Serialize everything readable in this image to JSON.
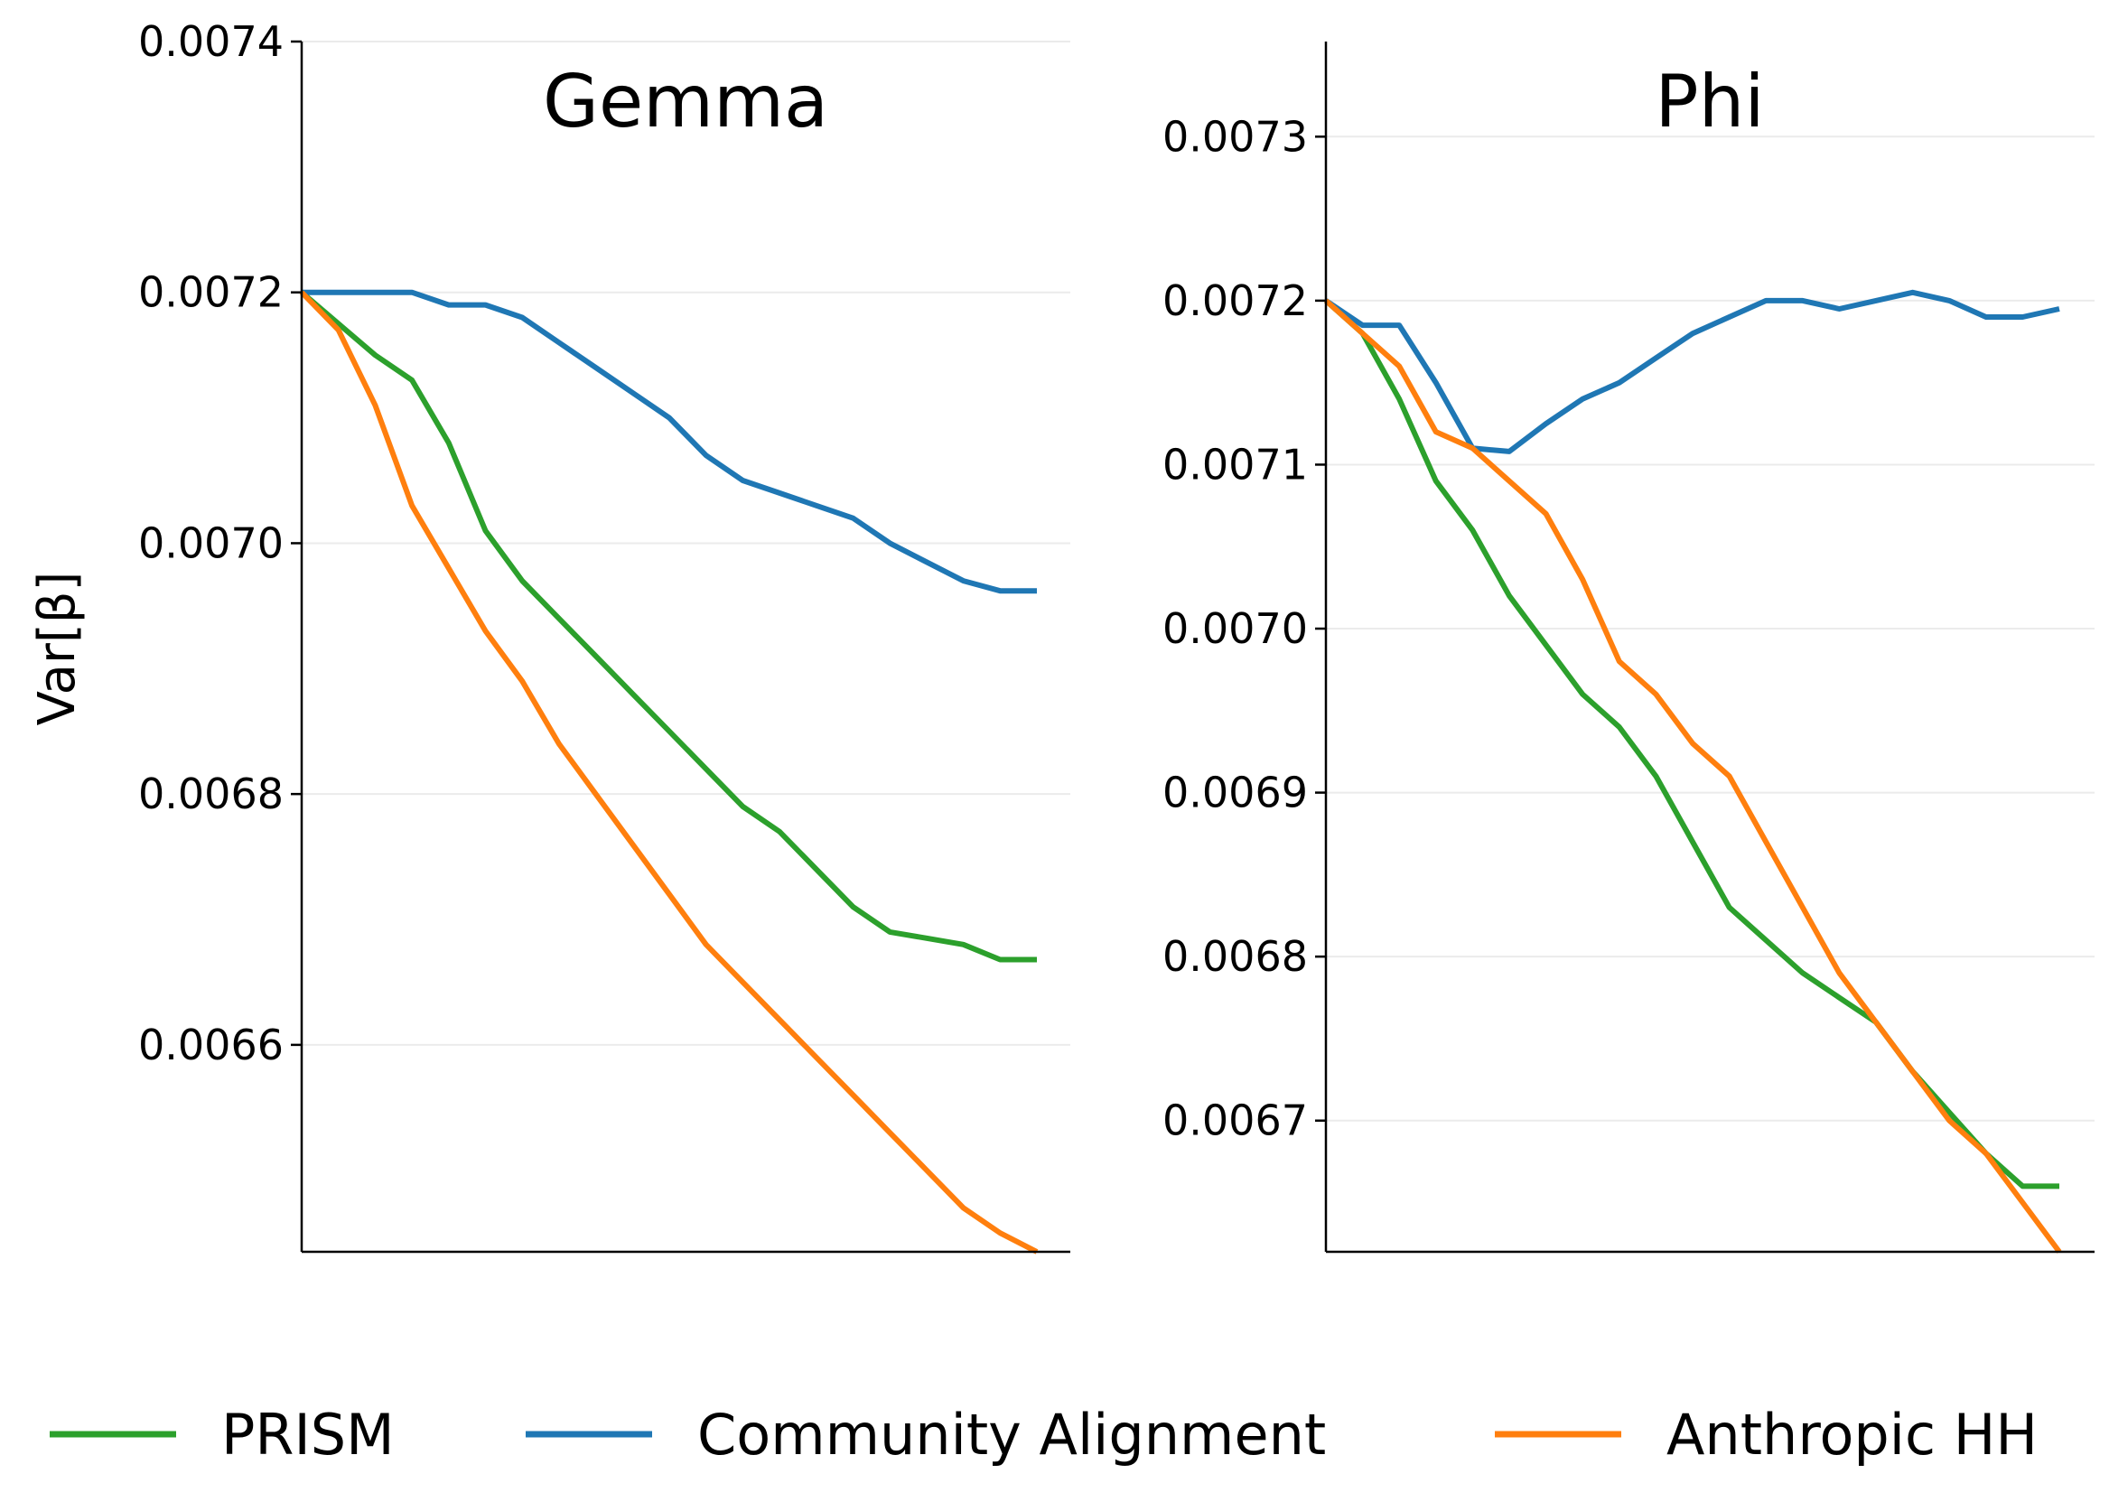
{
  "chart_data": [
    {
      "type": "line",
      "title": "Gemma",
      "xlabel": "",
      "ylabel": "Var[β]",
      "ylim": [
        0.006435,
        0.0074
      ],
      "yticks": [
        "0.0066",
        "0.0068",
        "0.0070",
        "0.0072",
        "0.0074"
      ],
      "ytick_values": [
        0.0066,
        0.0068,
        0.007,
        0.0072,
        0.0074
      ],
      "grid": "horizontal",
      "x": [
        0,
        0.05,
        0.1,
        0.15,
        0.2,
        0.25,
        0.3,
        0.35,
        0.4,
        0.45,
        0.5,
        0.55,
        0.6,
        0.65,
        0.7,
        0.75,
        0.8,
        0.85,
        0.9,
        0.95,
        1.0
      ],
      "series": [
        {
          "name": "PRISM",
          "color": "#2ca02c",
          "values": [
            0.0072,
            0.007175,
            0.00715,
            0.00713,
            0.00708,
            0.00701,
            0.00697,
            0.00694,
            0.00691,
            0.00688,
            0.00685,
            0.00682,
            0.00679,
            0.00677,
            0.00674,
            0.00671,
            0.00669,
            0.006685,
            0.00668,
            0.006668,
            0.006668
          ]
        },
        {
          "name": "Community Alignment",
          "color": "#1f77b4",
          "values": [
            0.0072,
            0.0072,
            0.0072,
            0.0072,
            0.00719,
            0.00719,
            0.00718,
            0.00716,
            0.00714,
            0.00712,
            0.0071,
            0.00707,
            0.00705,
            0.00704,
            0.00703,
            0.00702,
            0.007,
            0.006985,
            0.00697,
            0.006962,
            0.006962
          ]
        },
        {
          "name": "Anthropic HH",
          "color": "#ff7f0e",
          "values": [
            0.0072,
            0.00717,
            0.00711,
            0.00703,
            0.00698,
            0.00693,
            0.00689,
            0.00684,
            0.0068,
            0.00676,
            0.00672,
            0.00668,
            0.00665,
            0.00662,
            0.00659,
            0.00656,
            0.00653,
            0.0065,
            0.00647,
            0.00645,
            0.006435
          ]
        }
      ]
    },
    {
      "type": "line",
      "title": "Phi",
      "xlabel": "",
      "ylabel": "",
      "ylim": [
        0.00662,
        0.007358
      ],
      "yticks": [
        "0.0067",
        "0.0068",
        "0.0069",
        "0.0070",
        "0.0071",
        "0.0072",
        "0.0073"
      ],
      "ytick_values": [
        0.0067,
        0.0068,
        0.0069,
        0.007,
        0.0071,
        0.0072,
        0.0073
      ],
      "grid": "horizontal",
      "x": [
        0,
        0.05,
        0.1,
        0.15,
        0.2,
        0.25,
        0.3,
        0.35,
        0.4,
        0.45,
        0.5,
        0.55,
        0.6,
        0.65,
        0.7,
        0.75,
        0.8,
        0.85,
        0.9,
        0.95,
        1.0
      ],
      "series": [
        {
          "name": "PRISM",
          "color": "#2ca02c",
          "values": [
            0.0072,
            0.00718,
            0.00714,
            0.00709,
            0.00706,
            0.00702,
            0.00699,
            0.00696,
            0.00694,
            0.00691,
            0.00687,
            0.00683,
            0.00681,
            0.00679,
            0.006775,
            0.00676,
            0.00673,
            0.006705,
            0.00668,
            0.00666,
            0.00666
          ]
        },
        {
          "name": "Community Alignment",
          "color": "#1f77b4",
          "values": [
            0.0072,
            0.007185,
            0.007185,
            0.00715,
            0.00711,
            0.007108,
            0.007125,
            0.00714,
            0.00715,
            0.007165,
            0.00718,
            0.00719,
            0.0072,
            0.0072,
            0.007195,
            0.0072,
            0.007205,
            0.0072,
            0.00719,
            0.00719,
            0.007195
          ]
        },
        {
          "name": "Anthropic HH",
          "color": "#ff7f0e",
          "values": [
            0.0072,
            0.00718,
            0.00716,
            0.00712,
            0.00711,
            0.00709,
            0.00707,
            0.00703,
            0.00698,
            0.00696,
            0.00693,
            0.00691,
            0.00687,
            0.00683,
            0.00679,
            0.00676,
            0.00673,
            0.0067,
            0.00668,
            0.00665,
            0.00662
          ]
        }
      ]
    }
  ],
  "legend": {
    "items": [
      {
        "label": "PRISM",
        "color": "#2ca02c"
      },
      {
        "label": "Community Alignment",
        "color": "#1f77b4"
      },
      {
        "label": "Anthropic HH",
        "color": "#ff7f0e"
      }
    ]
  }
}
